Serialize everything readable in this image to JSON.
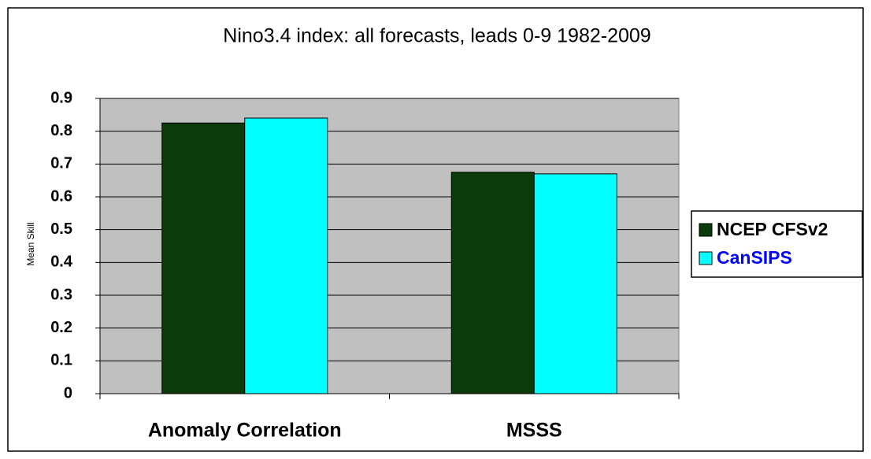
{
  "chart_data": {
    "type": "bar",
    "title": "Nino3.4 index: all forecasts, leads 0-9 1982-2009",
    "y_label": "Mean Skill",
    "categories": [
      "Anomaly Correlation",
      "MSSS"
    ],
    "series": [
      {
        "name": "NCEP CFSv2",
        "color": "#0b3a0b",
        "values": [
          0.825,
          0.675
        ]
      },
      {
        "name": "CanSIPS",
        "color": "#00ffff",
        "values": [
          0.84,
          0.67
        ]
      }
    ],
    "ylim": [
      0,
      0.9
    ],
    "yticks": [
      0,
      0.1,
      0.2,
      0.3,
      0.4,
      0.5,
      0.6,
      0.7,
      0.8,
      0.9
    ],
    "grid": true,
    "legend": "right"
  }
}
